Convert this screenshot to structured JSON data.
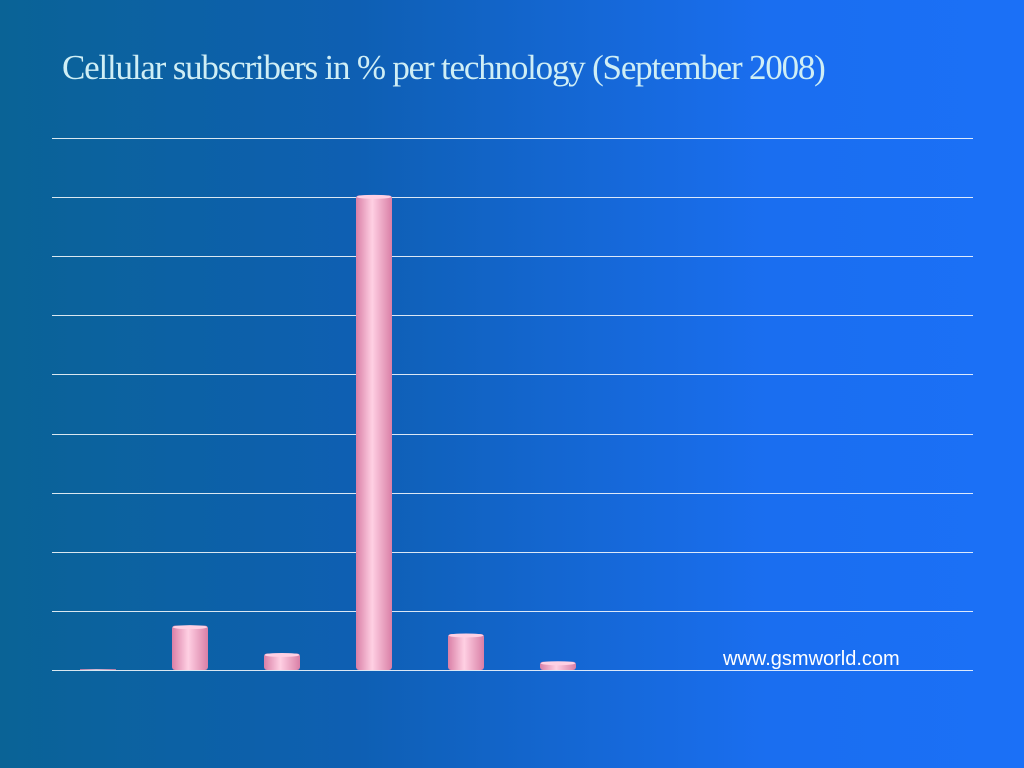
{
  "slide": {
    "title": "Cellular subscribers in % per technology (September 2008)",
    "source": "www.gsmworld.com"
  },
  "colors": {
    "gridline": "#ffffff",
    "bar_face": "#f4a7c8",
    "bar_highlight": "#ffd0e3",
    "bar_shadow": "#d97fa6",
    "title_text": "#cfeef5"
  },
  "chart_data": {
    "type": "bar",
    "title": "Cellular subscribers in % per technology (September 2008)",
    "xlabel": "",
    "ylabel": "",
    "grid": true,
    "legend": "none",
    "ylim": [
      0,
      90
    ],
    "gridline_step": 10,
    "categories": [
      "",
      "",
      "",
      "",
      "",
      ""
    ],
    "values": [
      0.1,
      7.5,
      2.8,
      80.3,
      6.1,
      1.4
    ]
  }
}
